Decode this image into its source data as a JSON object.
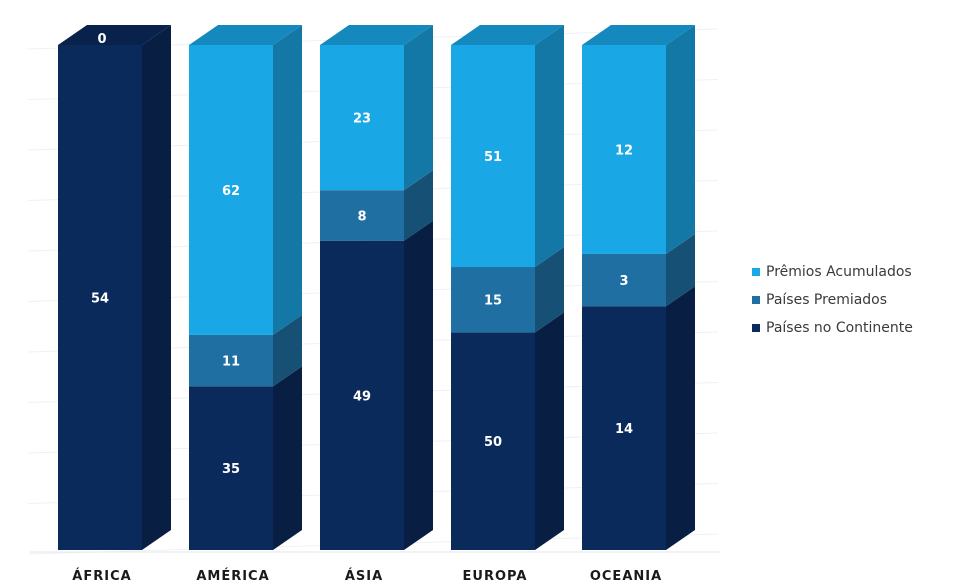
{
  "chart_data": {
    "type": "bar",
    "stacked": true,
    "style": "3d-columns",
    "categories": [
      "ÁFRICA",
      "AMÉRICA",
      "ÁSIA",
      "EUROPA",
      "OCEANIA"
    ],
    "series": [
      {
        "name": "Países no Continente",
        "color": "#0b2a5c",
        "values": [
          54,
          35,
          49,
          50,
          14
        ]
      },
      {
        "name": "Países Premiados",
        "color": "#1f6fa3",
        "values": [
          0,
          11,
          8,
          15,
          3
        ]
      },
      {
        "name": "Prêmios Acumulados",
        "color": "#1aa7e6",
        "values": [
          0,
          62,
          23,
          51,
          12
        ]
      }
    ],
    "data_labels": [
      [
        "54",
        "35",
        "49",
        "50",
        "14"
      ],
      [
        "0",
        "11",
        "8",
        "15",
        "3"
      ],
      [
        "",
        "62",
        "23",
        "51",
        "12"
      ]
    ],
    "title": "",
    "xlabel": "",
    "ylabel": "",
    "normalized": true,
    "grid": true,
    "legend": "right"
  }
}
